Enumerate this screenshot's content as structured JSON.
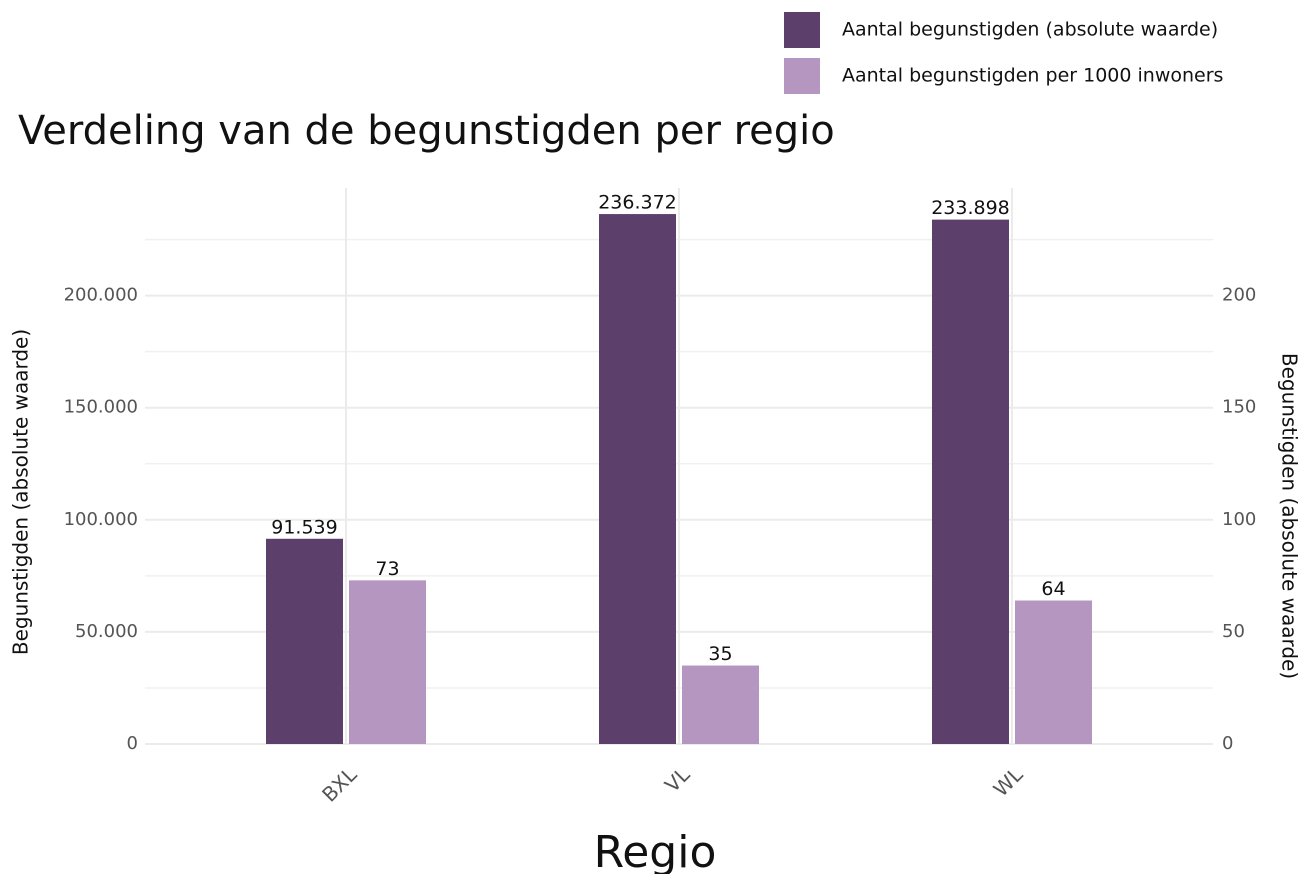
{
  "chart_data": {
    "type": "bar",
    "title": "Verdeling van de begunstigden per regio",
    "xlabel": "Regio",
    "ylabel": "Begunstigden (absolute waarde)",
    "y2label": "Begunstigden (absolute waarde)",
    "categories": [
      "BXL",
      "VL",
      "WL"
    ],
    "series": [
      {
        "name": "Aantal begunstigden (absolute waarde)",
        "color": "#5c406b",
        "values": [
          91539,
          236372,
          233898
        ],
        "value_labels": [
          "91.539",
          "236.372",
          "233.898"
        ]
      },
      {
        "name": "Aantal begunstigden per 1000 inwoners",
        "color": "#b496c0",
        "axis": "y2",
        "values": [
          73,
          35,
          64
        ]
      }
    ],
    "ylim": [
      0,
      248000
    ],
    "yticks": [
      0,
      {
        "value": 50000,
        "label": "50.000"
      },
      {
        "value": 100000,
        "label": "100.000"
      },
      {
        "value": 150000,
        "label": "150.000"
      },
      {
        "value": 200000,
        "label": "200.000"
      }
    ],
    "minor_grid": [
      25000,
      75000,
      125000,
      175000,
      225000
    ],
    "y2lim": [
      0,
      248
    ],
    "y2ticks": [
      0,
      50,
      100,
      150,
      200
    ],
    "grid": true,
    "legend": "top-right"
  }
}
